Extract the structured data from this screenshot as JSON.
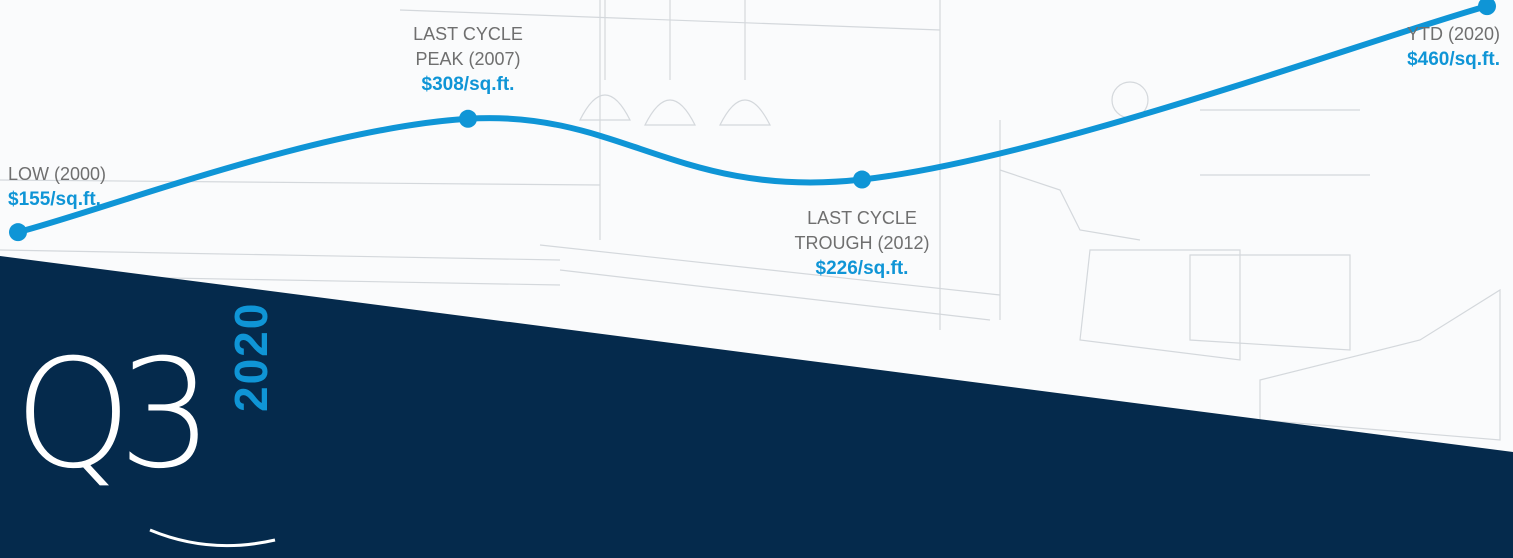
{
  "chart_data": {
    "type": "line",
    "categories": [
      "LOW (2000)",
      "LAST CYCLE PEAK (2007)",
      "LAST CYCLE TROUGH (2012)",
      "YTD (2020)"
    ],
    "values": [
      155,
      308,
      226,
      460
    ],
    "value_labels": [
      "$155/sq.ft.",
      "$308/sq.ft.",
      "$226/sq.ft.",
      "$460/sq.ft."
    ],
    "color": "#0f95d6"
  },
  "badge": {
    "quarter": "Q3",
    "year": "2020"
  }
}
